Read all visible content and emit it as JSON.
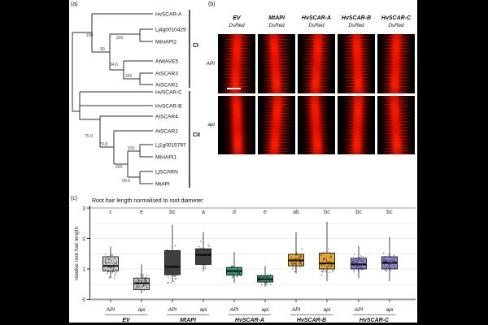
{
  "figure": {
    "panel_a_tag": "(a)",
    "panel_b_tag": "(b)",
    "panel_c_tag": "(c)"
  },
  "panel_a": {
    "leaves": [
      "HvSCAR-A",
      "Lj4g0010429",
      "MtHAPI2",
      "AtWAVE5",
      "AtSCAR3",
      "AtSCAR1",
      "HvSCAR-C",
      "HvSCAR-B",
      "AtSCAR4",
      "AtSCAR2",
      "Lj1g0015797",
      "MtHAPI1",
      "LjSCARN",
      "MtAPI"
    ],
    "bootstraps": [
      "100",
      "100",
      "99",
      "64.6",
      "100",
      "75.9",
      "79.8",
      "100",
      "100",
      "99.9"
    ],
    "clade_labels": [
      "CI",
      "CII"
    ]
  },
  "panel_b": {
    "columns": [
      {
        "name": "EV",
        "reporter": "DsRed"
      },
      {
        "name": "MtAPI",
        "reporter": "DsRed"
      },
      {
        "name": "HvSCAR-A",
        "reporter": "DsRed"
      },
      {
        "name": "HvSCAR-B",
        "reporter": "DsRed"
      },
      {
        "name": "HvSCAR-C",
        "reporter": "DsRed"
      }
    ],
    "row_labels": [
      "API",
      "api"
    ]
  },
  "chart_data": {
    "type": "boxplot",
    "title": "Root hair length normalised to root diameter",
    "ylabel": "relative root hair length",
    "ylim": [
      0,
      3
    ],
    "yticks": [
      0,
      1,
      2,
      3
    ],
    "grid": "horizontal gridlines every 0.5",
    "conditions": [
      "API",
      "api"
    ],
    "groups": [
      {
        "name": "EV",
        "color": "#c9c9c9",
        "boxes": [
          {
            "condition": "API",
            "letter": "c",
            "whisker_low": 0.7,
            "q1": 0.93,
            "median": 1.1,
            "q3": 1.4,
            "whisker_high": 1.73
          },
          {
            "condition": "api",
            "letter": "e",
            "whisker_low": 0.2,
            "q1": 0.32,
            "median": 0.53,
            "q3": 0.7,
            "whisker_high": 1.15
          }
        ]
      },
      {
        "name": "MtAPI",
        "color": "#404040",
        "boxes": [
          {
            "condition": "API",
            "letter": "bc",
            "whisker_low": 0.61,
            "q1": 0.81,
            "median": 1.07,
            "q3": 1.6,
            "whisker_high": 2.45
          },
          {
            "condition": "api",
            "letter": "a",
            "whisker_low": 0.93,
            "q1": 1.15,
            "median": 1.46,
            "q3": 1.66,
            "whisker_high": 2.2
          }
        ]
      },
      {
        "name": "HvSCAR-A",
        "color": "#2aab87",
        "boxes": [
          {
            "condition": "API",
            "letter": "d",
            "whisker_low": 0.55,
            "q1": 0.8,
            "median": 0.93,
            "q3": 1.05,
            "whisker_high": 1.55
          },
          {
            "condition": "api",
            "letter": "e",
            "whisker_low": 0.42,
            "q1": 0.57,
            "median": 0.66,
            "q3": 0.78,
            "whisker_high": 1.1
          }
        ]
      },
      {
        "name": "HvSCAR-B",
        "color": "#e9a72e",
        "boxes": [
          {
            "condition": "API",
            "letter": "ab",
            "whisker_low": 0.85,
            "q1": 1.1,
            "median": 1.28,
            "q3": 1.48,
            "whisker_high": 2.2
          },
          {
            "condition": "api",
            "letter": "bc",
            "whisker_low": 0.6,
            "q1": 1.0,
            "median": 1.18,
            "q3": 1.52,
            "whisker_high": 2.55
          }
        ]
      },
      {
        "name": "HvSCAR-C",
        "color": "#8a85ce",
        "boxes": [
          {
            "condition": "API",
            "letter": "bc",
            "whisker_low": 0.7,
            "q1": 1.0,
            "median": 1.15,
            "q3": 1.35,
            "whisker_high": 1.75
          },
          {
            "condition": "api",
            "letter": "bc",
            "whisker_low": 0.6,
            "q1": 1.0,
            "median": 1.2,
            "q3": 1.4,
            "whisker_high": 2.05
          }
        ]
      }
    ]
  }
}
